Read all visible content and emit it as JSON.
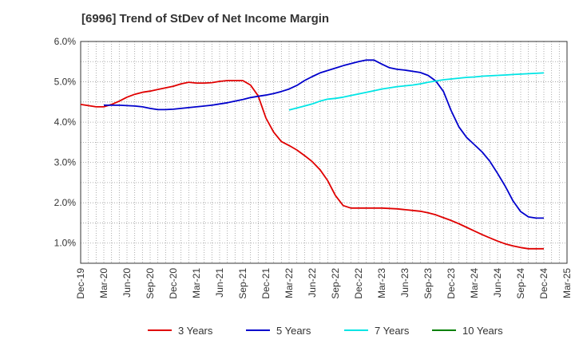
{
  "title": "[6996]  Trend of StDev of Net Income Margin",
  "chart_data": {
    "type": "line",
    "title": "[6996]  Trend of StDev of Net Income Margin",
    "xlabel": "",
    "ylabel": "",
    "x_ticks": [
      "Dec-19",
      "Mar-20",
      "Jun-20",
      "Sep-20",
      "Dec-20",
      "Mar-21",
      "Jun-21",
      "Sep-21",
      "Dec-21",
      "Mar-22",
      "Jun-22",
      "Sep-22",
      "Dec-22",
      "Mar-23",
      "Jun-23",
      "Sep-23",
      "Dec-23",
      "Mar-24",
      "Jun-24",
      "Sep-24",
      "Dec-24",
      "Mar-25"
    ],
    "y_ticks": [
      "1.0%",
      "2.0%",
      "3.0%",
      "4.0%",
      "5.0%",
      "6.0%"
    ],
    "ylim": [
      0.5,
      6.0
    ],
    "grid": true,
    "legend_position": "bottom",
    "series": [
      {
        "name": "3 Years",
        "color": "#e00000",
        "x": [
          "2019-12",
          "2020-01",
          "2020-02",
          "2020-03",
          "2020-04",
          "2020-05",
          "2020-06",
          "2020-07",
          "2020-08",
          "2020-09",
          "2020-10",
          "2020-11",
          "2020-12",
          "2021-01",
          "2021-02",
          "2021-03",
          "2021-04",
          "2021-05",
          "2021-06",
          "2021-07",
          "2021-08",
          "2021-09",
          "2021-10",
          "2021-11",
          "2021-12",
          "2022-01",
          "2022-02",
          "2022-03",
          "2022-04",
          "2022-05",
          "2022-06",
          "2022-07",
          "2022-08",
          "2022-09",
          "2022-10",
          "2022-11",
          "2022-12",
          "2023-01",
          "2023-02",
          "2023-03",
          "2023-04",
          "2023-05",
          "2023-06",
          "2023-07",
          "2023-08",
          "2023-09",
          "2023-10",
          "2023-11",
          "2023-12",
          "2024-01",
          "2024-02",
          "2024-03",
          "2024-04",
          "2024-05",
          "2024-06",
          "2024-07",
          "2024-08",
          "2024-09",
          "2024-10",
          "2024-11",
          "2024-12"
        ],
        "y": [
          4.44,
          4.41,
          4.38,
          4.38,
          4.44,
          4.52,
          4.62,
          4.69,
          4.74,
          4.77,
          4.81,
          4.85,
          4.89,
          4.95,
          4.99,
          4.97,
          4.97,
          4.98,
          5.01,
          5.03,
          5.03,
          5.03,
          4.92,
          4.65,
          4.1,
          3.75,
          3.52,
          3.42,
          3.31,
          3.17,
          3.02,
          2.82,
          2.55,
          2.18,
          1.93,
          1.87,
          1.87,
          1.87,
          1.87,
          1.87,
          1.86,
          1.85,
          1.83,
          1.81,
          1.79,
          1.75,
          1.7,
          1.63,
          1.56,
          1.48,
          1.39,
          1.3,
          1.21,
          1.13,
          1.05,
          0.98,
          0.93,
          0.89,
          0.86,
          0.86,
          0.86
        ]
      },
      {
        "name": "5 Years",
        "color": "#0000cc",
        "x": [
          "2020-03",
          "2020-04",
          "2020-05",
          "2020-06",
          "2020-07",
          "2020-08",
          "2020-09",
          "2020-10",
          "2020-11",
          "2020-12",
          "2021-01",
          "2021-02",
          "2021-03",
          "2021-04",
          "2021-05",
          "2021-06",
          "2021-07",
          "2021-08",
          "2021-09",
          "2021-10",
          "2021-11",
          "2021-12",
          "2022-01",
          "2022-02",
          "2022-03",
          "2022-04",
          "2022-05",
          "2022-06",
          "2022-07",
          "2022-08",
          "2022-09",
          "2022-10",
          "2022-11",
          "2022-12",
          "2023-01",
          "2023-02",
          "2023-03",
          "2023-04",
          "2023-05",
          "2023-06",
          "2023-07",
          "2023-08",
          "2023-09",
          "2023-10",
          "2023-11",
          "2023-12",
          "2024-01",
          "2024-02",
          "2024-03",
          "2024-04",
          "2024-05",
          "2024-06",
          "2024-07",
          "2024-08",
          "2024-09",
          "2024-10",
          "2024-11",
          "2024-12"
        ],
        "y": [
          4.42,
          4.42,
          4.42,
          4.41,
          4.4,
          4.38,
          4.34,
          4.31,
          4.31,
          4.32,
          4.34,
          4.36,
          4.38,
          4.4,
          4.42,
          4.45,
          4.48,
          4.52,
          4.56,
          4.61,
          4.64,
          4.67,
          4.71,
          4.76,
          4.82,
          4.91,
          5.03,
          5.13,
          5.22,
          5.28,
          5.34,
          5.4,
          5.45,
          5.5,
          5.54,
          5.54,
          5.44,
          5.35,
          5.31,
          5.29,
          5.26,
          5.23,
          5.16,
          5.02,
          4.76,
          4.28,
          3.88,
          3.62,
          3.44,
          3.26,
          3.03,
          2.73,
          2.41,
          2.05,
          1.78,
          1.65,
          1.62,
          1.62
        ]
      },
      {
        "name": "7 Years",
        "color": "#00e5e5",
        "x": [
          "2022-03",
          "2022-04",
          "2022-05",
          "2022-06",
          "2022-07",
          "2022-08",
          "2022-09",
          "2022-10",
          "2022-11",
          "2022-12",
          "2023-01",
          "2023-02",
          "2023-03",
          "2023-04",
          "2023-05",
          "2023-06",
          "2023-07",
          "2023-08",
          "2023-09",
          "2023-10",
          "2023-11",
          "2023-12",
          "2024-01",
          "2024-02",
          "2024-03",
          "2024-04",
          "2024-05",
          "2024-06",
          "2024-07",
          "2024-08",
          "2024-09",
          "2024-10",
          "2024-11",
          "2024-12"
        ],
        "y": [
          4.3,
          4.35,
          4.4,
          4.45,
          4.52,
          4.57,
          4.59,
          4.62,
          4.66,
          4.7,
          4.74,
          4.78,
          4.82,
          4.85,
          4.88,
          4.9,
          4.92,
          4.95,
          4.99,
          5.02,
          5.05,
          5.07,
          5.09,
          5.11,
          5.12,
          5.14,
          5.15,
          5.16,
          5.17,
          5.18,
          5.19,
          5.2,
          5.21,
          5.22
        ]
      },
      {
        "name": "10 Years",
        "color": "#008000",
        "x": [],
        "y": []
      }
    ]
  }
}
